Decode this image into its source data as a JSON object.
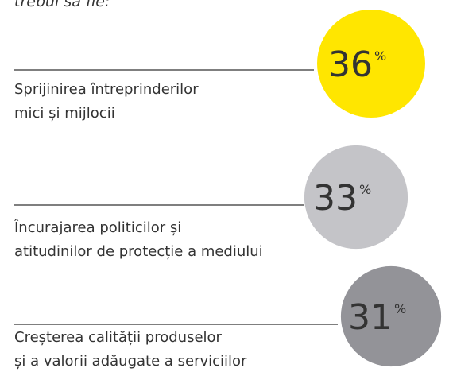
{
  "chart_data": {
    "type": "bubble",
    "title": "trebui să fie:",
    "categories": [
      [
        "Sprijinirea întreprinderilor",
        "mici și mijlocii"
      ],
      [
        "Încurajarea politicilor și",
        "atitudinilor de protecție a mediului"
      ],
      [
        "Creșterea calității produselor",
        "și a valorii adăugate a serviciilor"
      ]
    ],
    "values": [
      36,
      33,
      31
    ],
    "unit": "%",
    "colors": [
      "#ffe600",
      "#c4c4c8",
      "#939398"
    ]
  }
}
